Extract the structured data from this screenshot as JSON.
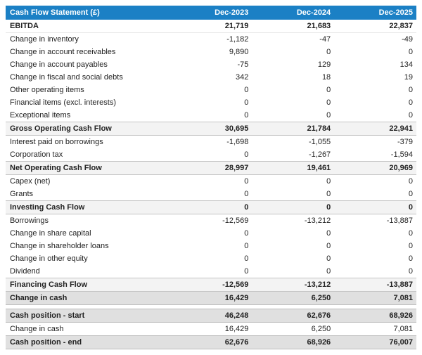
{
  "theme": {
    "header_bg": "#1b80c5",
    "header_text": "#ffffff",
    "subtotal_bg": "#f3f3f3",
    "total_bg": "#e0e0e0",
    "text_color": "#222222"
  },
  "chart_data": {
    "type": "table",
    "title": "Cash Flow Statement (£)",
    "currency_symbol": "£",
    "columns": [
      "Dec-2023",
      "Dec-2024",
      "Dec-2025"
    ],
    "rows": [
      {
        "label": "EBITDA",
        "values": [
          21719,
          21683,
          22837
        ],
        "style": "bold"
      },
      {
        "label": "Change in inventory",
        "values": [
          -1182,
          -47,
          -49
        ],
        "style": "normal"
      },
      {
        "label": "Change in account receivables",
        "values": [
          9890,
          0,
          0
        ],
        "style": "normal"
      },
      {
        "label": "Change in account payables",
        "values": [
          -75,
          129,
          134
        ],
        "style": "normal"
      },
      {
        "label": "Change in fiscal and social debts",
        "values": [
          342,
          18,
          19
        ],
        "style": "normal"
      },
      {
        "label": "Other operating items",
        "values": [
          0,
          0,
          0
        ],
        "style": "normal"
      },
      {
        "label": "Financial items (excl. interests)",
        "values": [
          0,
          0,
          0
        ],
        "style": "normal"
      },
      {
        "label": "Exceptional items",
        "values": [
          0,
          0,
          0
        ],
        "style": "normal"
      },
      {
        "label": "Gross Operating Cash Flow",
        "values": [
          30695,
          21784,
          22941
        ],
        "style": "subtotal"
      },
      {
        "label": "Interest paid on borrowings",
        "values": [
          -1698,
          -1055,
          -379
        ],
        "style": "normal"
      },
      {
        "label": "Corporation tax",
        "values": [
          0,
          -1267,
          -1594
        ],
        "style": "normal"
      },
      {
        "label": "Net Operating Cash Flow",
        "values": [
          28997,
          19461,
          20969
        ],
        "style": "subtotal"
      },
      {
        "label": "Capex (net)",
        "values": [
          0,
          0,
          0
        ],
        "style": "normal"
      },
      {
        "label": "Grants",
        "values": [
          0,
          0,
          0
        ],
        "style": "normal"
      },
      {
        "label": "Investing Cash Flow",
        "values": [
          0,
          0,
          0
        ],
        "style": "subtotal"
      },
      {
        "label": "Borrowings",
        "values": [
          -12569,
          -13212,
          -13887
        ],
        "style": "normal"
      },
      {
        "label": "Change in share capital",
        "values": [
          0,
          0,
          0
        ],
        "style": "normal"
      },
      {
        "label": "Change in shareholder loans",
        "values": [
          0,
          0,
          0
        ],
        "style": "normal"
      },
      {
        "label": "Change in other equity",
        "values": [
          0,
          0,
          0
        ],
        "style": "normal"
      },
      {
        "label": "Dividend",
        "values": [
          0,
          0,
          0
        ],
        "style": "normal"
      },
      {
        "label": "Financing Cash Flow",
        "values": [
          -12569,
          -13212,
          -13887
        ],
        "style": "subtotal"
      },
      {
        "label": "Change in cash",
        "values": [
          16429,
          6250,
          7081
        ],
        "style": "total"
      },
      {
        "label": "",
        "values": [],
        "style": "gap"
      },
      {
        "label": "Cash position - start",
        "values": [
          46248,
          62676,
          68926
        ],
        "style": "total"
      },
      {
        "label": "Change in cash",
        "values": [
          16429,
          6250,
          7081
        ],
        "style": "normal"
      },
      {
        "label": "Cash position - end",
        "values": [
          62676,
          68926,
          76007
        ],
        "style": "total"
      }
    ]
  }
}
